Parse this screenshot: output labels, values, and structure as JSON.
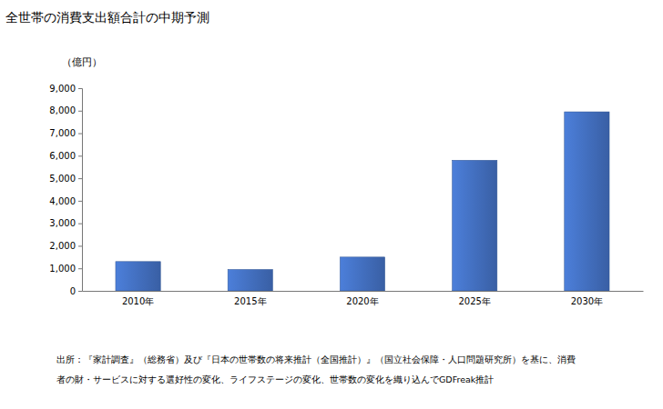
{
  "chart_data": {
    "type": "bar",
    "title": "全世帯の消費支出額合計の中期予測",
    "y_label": "（億円）",
    "categories": [
      "2010年",
      "2015年",
      "2020年",
      "2025年",
      "2030年"
    ],
    "values": [
      1300,
      950,
      1500,
      5800,
      7950
    ],
    "color": "#4472c4",
    "ylim": [
      0,
      9000
    ],
    "yticks": [
      0,
      {
        "value": 1000,
        "label": "1,000"
      },
      {
        "value": 2000,
        "label": "2,000"
      },
      {
        "value": 3000,
        "label": "3,000"
      },
      {
        "value": 4000,
        "label": "4,000"
      },
      {
        "value": 5000,
        "label": "5,000"
      },
      {
        "value": 6000,
        "label": "6,000"
      },
      {
        "value": 7000,
        "label": "7,000"
      },
      {
        "value": 8000,
        "label": "8,000"
      },
      {
        "value": 9000,
        "label": "9,000"
      }
    ],
    "grid": false,
    "source": [
      "出所：『家計調査』（総務省）及び『日本の世帯数の将来推計（全国推計）』（国立社会保障・人口問題研究所）を基に、消費",
      "者の財・サービスに対する選好性の変化、ライフステージの変化、世帯数の変化を織り込んでGDFreak推計"
    ]
  }
}
